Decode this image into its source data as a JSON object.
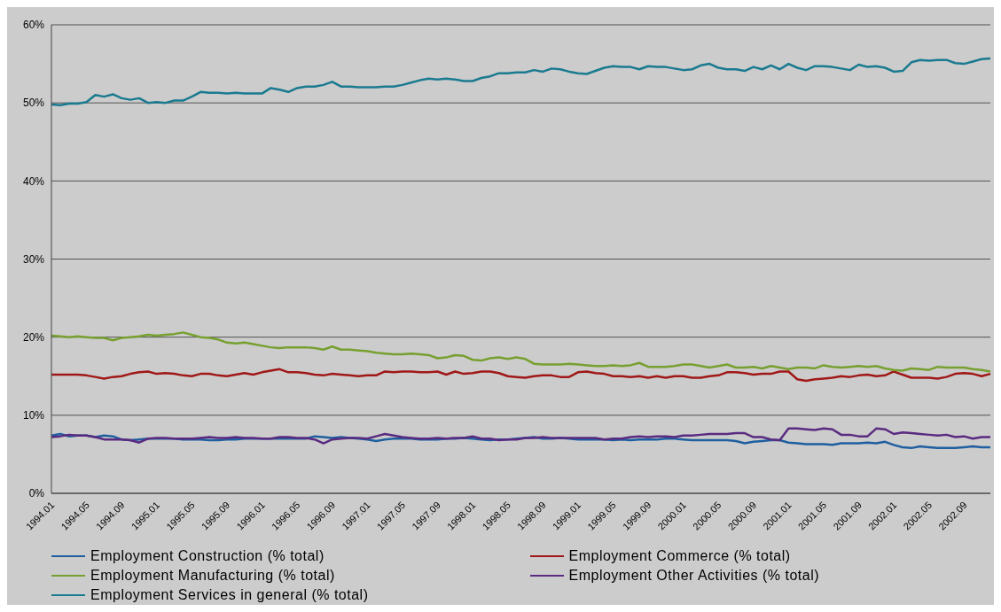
{
  "chart_data": {
    "type": "line",
    "categories": [
      "1994.01",
      null,
      null,
      null,
      "1994.05",
      null,
      null,
      null,
      "1994.09",
      null,
      null,
      null,
      "1995.01",
      null,
      null,
      null,
      "1995.05",
      null,
      null,
      null,
      "1995.09",
      null,
      null,
      null,
      "1996.01",
      null,
      null,
      null,
      "1996.05",
      null,
      null,
      null,
      "1996.09",
      null,
      null,
      null,
      "1997.01",
      null,
      null,
      null,
      "1997.05",
      null,
      null,
      null,
      "1997.09",
      null,
      null,
      null,
      "1998.01",
      null,
      null,
      null,
      "1998.05",
      null,
      null,
      null,
      "1998.09",
      null,
      null,
      null,
      "1999.01",
      null,
      null,
      null,
      "1999.05",
      null,
      null,
      null,
      "1999.09",
      null,
      null,
      null,
      "2000.01",
      null,
      null,
      null,
      "2000.05",
      null,
      null,
      null,
      "2000.09",
      null,
      null,
      null,
      "2001.01",
      null,
      null,
      null,
      "2001.05",
      null,
      null,
      null,
      "2001.09",
      null,
      null,
      null,
      "2002.01",
      null,
      null,
      null,
      "2002.05",
      null,
      null,
      null,
      "2002.09",
      null,
      null,
      null
    ],
    "series": [
      {
        "name": "Employment Construction (% total)",
        "color": "#1f5fa0",
        "values": [
          7.4,
          7.6,
          7.3,
          7.4,
          7.4,
          7.2,
          7.4,
          7.3,
          6.9,
          6.8,
          6.9,
          7.0,
          7.0,
          7.0,
          7.0,
          6.9,
          6.9,
          6.9,
          6.8,
          6.8,
          6.9,
          6.9,
          7.0,
          7.0,
          7.0,
          7.0,
          7.0,
          7.0,
          7.0,
          7.0,
          7.3,
          7.2,
          7.1,
          7.2,
          7.1,
          7.0,
          6.9,
          6.7,
          6.9,
          7.0,
          7.0,
          7.0,
          6.9,
          6.9,
          6.9,
          7.0,
          7.0,
          7.1,
          7.0,
          6.9,
          6.8,
          6.9,
          6.9,
          7.0,
          7.1,
          7.2,
          7.0,
          7.0,
          7.1,
          7.0,
          6.9,
          6.9,
          6.9,
          6.9,
          6.8,
          6.9,
          6.8,
          6.9,
          6.9,
          6.9,
          7.0,
          7.0,
          6.9,
          6.8,
          6.8,
          6.8,
          6.8,
          6.8,
          6.7,
          6.4,
          6.6,
          6.7,
          6.8,
          6.8,
          6.5,
          6.4,
          6.3,
          6.3,
          6.3,
          6.2,
          6.4,
          6.4,
          6.4,
          6.5,
          6.4,
          6.6,
          6.2,
          5.9,
          5.8,
          6.0,
          5.9,
          5.8,
          5.8,
          5.8,
          5.9,
          6.0,
          5.9,
          5.9
        ]
      },
      {
        "name": "Employment Commerce (% total)",
        "color": "#a01818",
        "values": [
          15.2,
          15.2,
          15.2,
          15.2,
          15.1,
          14.9,
          14.7,
          14.9,
          15.0,
          15.3,
          15.5,
          15.6,
          15.3,
          15.4,
          15.3,
          15.1,
          15.0,
          15.3,
          15.3,
          15.1,
          15.0,
          15.2,
          15.4,
          15.2,
          15.5,
          15.7,
          15.9,
          15.5,
          15.5,
          15.4,
          15.2,
          15.1,
          15.3,
          15.2,
          15.1,
          15.0,
          15.1,
          15.1,
          15.6,
          15.5,
          15.6,
          15.6,
          15.5,
          15.5,
          15.6,
          15.2,
          15.6,
          15.3,
          15.4,
          15.6,
          15.6,
          15.4,
          15.0,
          14.9,
          14.8,
          15.0,
          15.1,
          15.1,
          14.9,
          14.9,
          15.5,
          15.6,
          15.4,
          15.3,
          15.0,
          15.0,
          14.9,
          15.0,
          14.8,
          15.0,
          14.8,
          15.0,
          15.0,
          14.8,
          14.8,
          15.0,
          15.1,
          15.5,
          15.5,
          15.4,
          15.2,
          15.3,
          15.3,
          15.6,
          15.6,
          14.6,
          14.4,
          14.6,
          14.7,
          14.8,
          15.0,
          14.9,
          15.1,
          15.2,
          15.0,
          15.1,
          15.6,
          15.2,
          14.8,
          14.8,
          14.8,
          14.7,
          14.9,
          15.3,
          15.4,
          15.3,
          15.0,
          15.3
        ]
      },
      {
        "name": "Employment Manufacturing (% total)",
        "color": "#77a030",
        "values": [
          20.2,
          20.1,
          20.0,
          20.1,
          20.0,
          19.9,
          19.9,
          19.6,
          19.9,
          20.0,
          20.1,
          20.3,
          20.2,
          20.3,
          20.4,
          20.6,
          20.3,
          20.0,
          19.9,
          19.7,
          19.3,
          19.2,
          19.3,
          19.1,
          18.9,
          18.7,
          18.6,
          18.7,
          18.7,
          18.7,
          18.6,
          18.4,
          18.8,
          18.4,
          18.4,
          18.3,
          18.2,
          18.0,
          17.9,
          17.8,
          17.8,
          17.9,
          17.8,
          17.7,
          17.3,
          17.4,
          17.7,
          17.6,
          17.1,
          17.0,
          17.3,
          17.4,
          17.2,
          17.4,
          17.2,
          16.6,
          16.5,
          16.5,
          16.5,
          16.6,
          16.5,
          16.4,
          16.3,
          16.3,
          16.4,
          16.3,
          16.4,
          16.7,
          16.2,
          16.2,
          16.2,
          16.3,
          16.5,
          16.5,
          16.3,
          16.1,
          16.3,
          16.5,
          16.1,
          16.1,
          16.2,
          16.0,
          16.3,
          16.1,
          15.9,
          16.1,
          16.1,
          16.0,
          16.4,
          16.2,
          16.1,
          16.2,
          16.3,
          16.2,
          16.3,
          16.0,
          15.8,
          15.7,
          16.0,
          15.9,
          15.8,
          16.2,
          16.1,
          16.1,
          16.1,
          15.9,
          15.8,
          15.6
        ]
      },
      {
        "name": "Employment Other Activities (% total)",
        "color": "#5a2a80",
        "values": [
          7.2,
          7.3,
          7.5,
          7.4,
          7.4,
          7.2,
          6.9,
          6.9,
          6.9,
          6.8,
          6.5,
          7.0,
          7.1,
          7.1,
          7.0,
          7.0,
          7.0,
          7.1,
          7.2,
          7.1,
          7.1,
          7.2,
          7.1,
          7.1,
          7.0,
          7.0,
          7.2,
          7.2,
          7.1,
          7.1,
          6.9,
          6.4,
          6.9,
          7.0,
          7.1,
          7.1,
          7.0,
          7.3,
          7.6,
          7.4,
          7.2,
          7.1,
          7.0,
          7.0,
          7.1,
          7.0,
          7.1,
          7.1,
          7.3,
          7.0,
          7.0,
          6.8,
          6.9,
          6.9,
          7.1,
          7.1,
          7.2,
          7.1,
          7.1,
          7.1,
          7.1,
          7.1,
          7.1,
          6.9,
          7.0,
          7.0,
          7.2,
          7.3,
          7.2,
          7.3,
          7.3,
          7.2,
          7.4,
          7.4,
          7.5,
          7.6,
          7.6,
          7.6,
          7.7,
          7.7,
          7.2,
          7.2,
          6.9,
          6.8,
          8.3,
          8.3,
          8.2,
          8.1,
          8.3,
          8.2,
          7.5,
          7.5,
          7.3,
          7.3,
          8.3,
          8.2,
          7.6,
          7.8,
          7.7,
          7.6,
          7.5,
          7.4,
          7.5,
          7.2,
          7.3,
          7.0,
          7.2,
          7.2
        ]
      },
      {
        "name": "Employment Services in general (% total)",
        "color": "#1a7a90",
        "values": [
          49.8,
          49.7,
          49.9,
          49.9,
          50.1,
          51.0,
          50.8,
          51.1,
          50.6,
          50.4,
          50.6,
          50.0,
          50.1,
          50.0,
          50.3,
          50.3,
          50.8,
          51.4,
          51.3,
          51.3,
          51.2,
          51.3,
          51.2,
          51.2,
          51.2,
          51.9,
          51.7,
          51.4,
          51.9,
          52.1,
          52.1,
          52.3,
          52.7,
          52.1,
          52.1,
          52.0,
          52.0,
          52.0,
          52.1,
          52.1,
          52.3,
          52.6,
          52.9,
          53.1,
          53.0,
          53.1,
          53.0,
          52.8,
          52.8,
          53.2,
          53.4,
          53.8,
          53.8,
          53.9,
          53.9,
          54.2,
          54.0,
          54.4,
          54.3,
          54.0,
          53.8,
          53.7,
          54.1,
          54.5,
          54.7,
          54.6,
          54.6,
          54.3,
          54.7,
          54.6,
          54.6,
          54.4,
          54.2,
          54.3,
          54.8,
          55.0,
          54.5,
          54.3,
          54.3,
          54.1,
          54.6,
          54.3,
          54.8,
          54.3,
          55.0,
          54.5,
          54.2,
          54.7,
          54.7,
          54.6,
          54.4,
          54.2,
          54.9,
          54.6,
          54.7,
          54.5,
          54.0,
          54.1,
          55.2,
          55.5,
          55.4,
          55.5,
          55.5,
          55.1,
          55.0,
          55.3,
          55.6,
          55.7
        ]
      }
    ],
    "ylim": [
      0,
      60
    ],
    "yticks": [
      {
        "value": 0,
        "label": "0%"
      },
      {
        "value": 10,
        "label": "10%"
      },
      {
        "value": 20,
        "label": "20%"
      },
      {
        "value": 30,
        "label": "30%"
      },
      {
        "value": 40,
        "label": "40%"
      },
      {
        "value": 50,
        "label": "50%"
      },
      {
        "value": 60,
        "label": "60%"
      }
    ],
    "grid": "y",
    "legend": "bottom",
    "marker": "none",
    "line_style": "solid"
  }
}
